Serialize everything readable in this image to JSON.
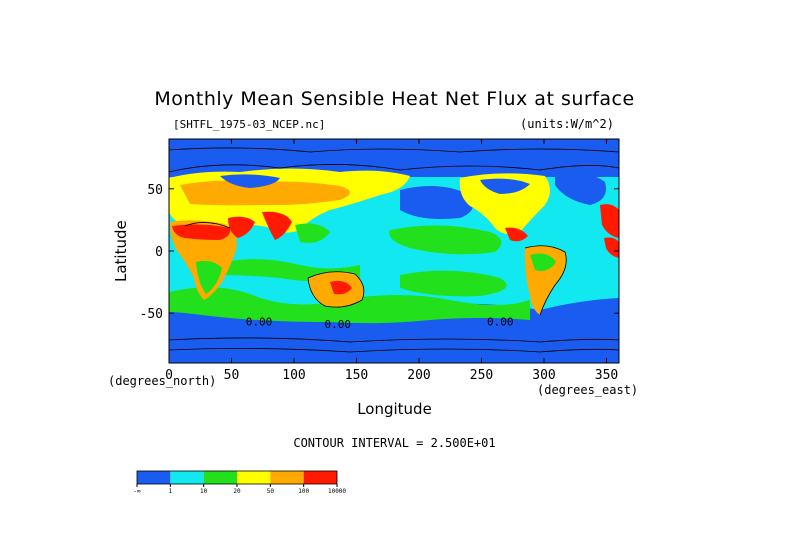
{
  "chart_data": {
    "type": "heatmap",
    "title": "Monthly Mean Sensible Heat Net Flux at surface",
    "subtitle_left": "[SHTFL_1975-03_NCEP.nc]",
    "subtitle_right": "(units:W/m^2)",
    "xlabel": "Longitude",
    "ylabel": "Latitude",
    "x_unit_label": "(degrees_east)",
    "y_unit_label": "(degrees_north)",
    "xlim": [
      0,
      360
    ],
    "ylim": [
      -90,
      90
    ],
    "x_ticks": [
      0,
      50,
      100,
      150,
      200,
      250,
      300,
      350
    ],
    "y_ticks": [
      50,
      0,
      -50
    ],
    "contour_note": "CONTOUR INTERVAL = 2.500E+01",
    "contour_labels": [
      "0.00",
      "0.00",
      "0.00"
    ],
    "colorbar": {
      "colors": [
        "#1a5cf0",
        "#12e8f0",
        "#22e01c",
        "#ffff00",
        "#ffaa00",
        "#ff1a00"
      ],
      "tick_labels": [
        "-∞",
        "1",
        "10",
        "20",
        "50",
        "100",
        "10000"
      ]
    }
  }
}
